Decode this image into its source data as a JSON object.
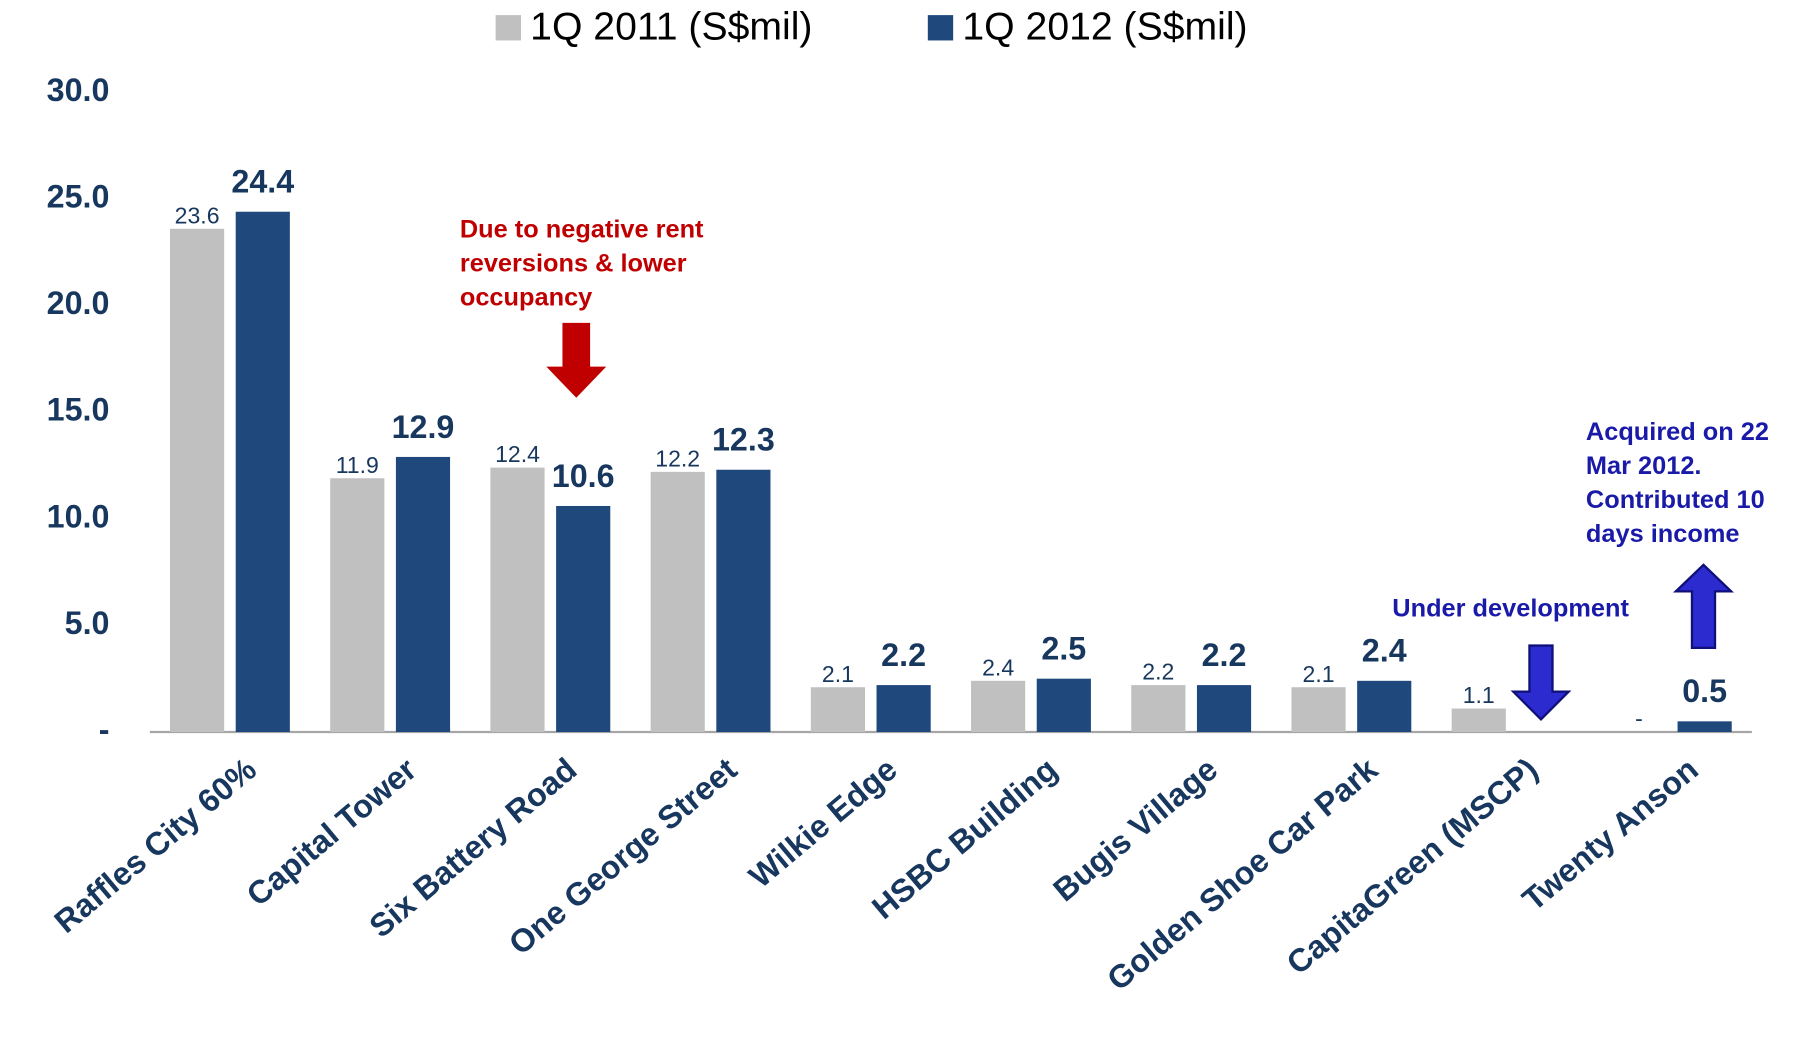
{
  "chart_data": {
    "type": "bar",
    "categories": [
      "Raffles City 60%",
      "Capital Tower",
      "Six Battery Road",
      "One George Street",
      "Wilkie Edge",
      "HSBC Building",
      "Bugis Village",
      "Golden Shoe Car Park",
      "CapitaGreen (MSCP)",
      "Twenty Anson"
    ],
    "series": [
      {
        "name": "1Q 2011 (S$mil)",
        "color": "#c0c0c0",
        "values": [
          23.6,
          11.9,
          12.4,
          12.2,
          2.1,
          2.4,
          2.2,
          2.1,
          1.1,
          0
        ],
        "value_labels": [
          "23.6",
          "11.9",
          "12.4",
          "12.2",
          "2.1",
          "2.4",
          "2.2",
          "2.1",
          "1.1",
          "-"
        ]
      },
      {
        "name": "1Q 2012 (S$mil)",
        "color": "#1f497d",
        "values": [
          24.4,
          12.9,
          10.6,
          12.3,
          2.2,
          2.5,
          2.2,
          2.4,
          null,
          0.5
        ]
      }
    ],
    "ylim": [
      0,
      30
    ],
    "yticks": [
      {
        "value": 0,
        "label": "-"
      },
      {
        "value": 5,
        "label": "5.0"
      },
      {
        "value": 10,
        "label": "10.0"
      },
      {
        "value": 15,
        "label": "15.0"
      },
      {
        "value": 20,
        "label": "20.0"
      },
      {
        "value": 25,
        "label": "25.0"
      },
      {
        "value": 30,
        "label": "30.0"
      }
    ],
    "annotations": [
      {
        "lines": [
          "Due to negative rent",
          "reversions & lower",
          "occupancy"
        ],
        "color": "#c00000"
      },
      {
        "lines": [
          "Under development"
        ],
        "color": "#1a1aa8"
      },
      {
        "lines": [
          "Acquired on 22",
          "Mar 2012.",
          "Contributed 10",
          "days income"
        ],
        "color": "#1a1aa8"
      }
    ]
  }
}
